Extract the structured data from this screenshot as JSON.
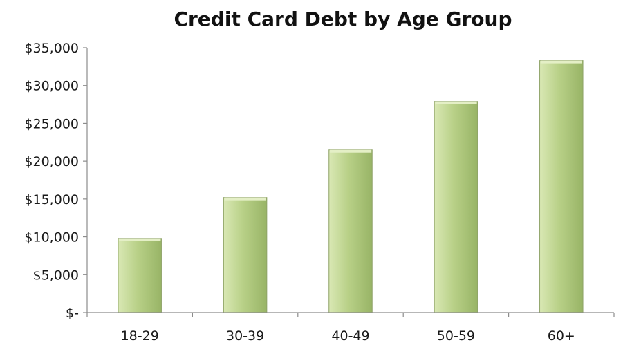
{
  "chart_data": {
    "type": "bar",
    "title": "Credit Card Debt by Age Group",
    "xlabel": "",
    "ylabel": "",
    "categories": [
      "18-29",
      "30-39",
      "40-49",
      "50-59",
      "60+"
    ],
    "values": [
      9800,
      15200,
      21500,
      27900,
      33300
    ],
    "ylim": [
      0,
      35000
    ],
    "yticks": [
      0,
      5000,
      10000,
      15000,
      20000,
      25000,
      30000,
      35000
    ],
    "ytick_labels": [
      "$-",
      "$5,000",
      "$10,000",
      "$15,000",
      "$20,000",
      "$25,000",
      "$30,000",
      "$35,000"
    ],
    "grid": false,
    "legend": "none",
    "colors": {
      "bar_light": "#d9e8b4",
      "bar_mid": "#b8d087",
      "bar_dark": "#98b466",
      "bar_top": "#e4efc6",
      "axis": "#8c8c8c"
    }
  }
}
